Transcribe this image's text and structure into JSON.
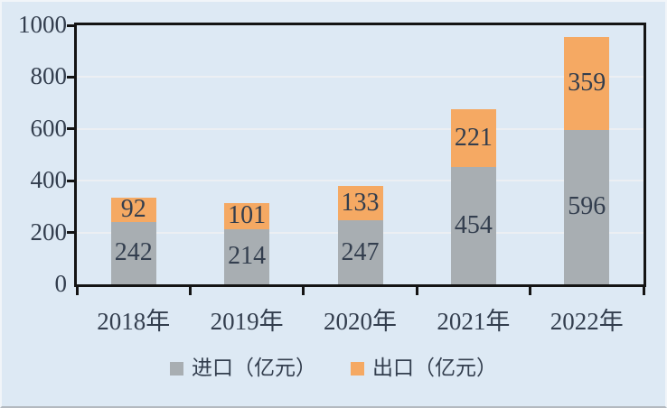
{
  "chart_data": {
    "type": "bar",
    "stacked": true,
    "title": "",
    "xlabel": "",
    "ylabel": "",
    "categories": [
      "2018年",
      "2019年",
      "2020年",
      "2021年",
      "2022年"
    ],
    "series": [
      {
        "name": "进口（亿元）",
        "color": "#a8aeb2",
        "values": [
          242,
          214,
          247,
          454,
          596
        ]
      },
      {
        "name": "出口（亿元）",
        "color": "#f5a963",
        "values": [
          92,
          101,
          133,
          221,
          359
        ]
      }
    ],
    "ylim": [
      0,
      1000
    ],
    "yticks": [
      0,
      200,
      400,
      600,
      800,
      1000
    ],
    "grid": true,
    "legend_position": "bottom"
  },
  "colors": {
    "background": "#dde9f4",
    "axis": "#141414",
    "gridline": "#eceff3",
    "text": "#333e4e"
  }
}
